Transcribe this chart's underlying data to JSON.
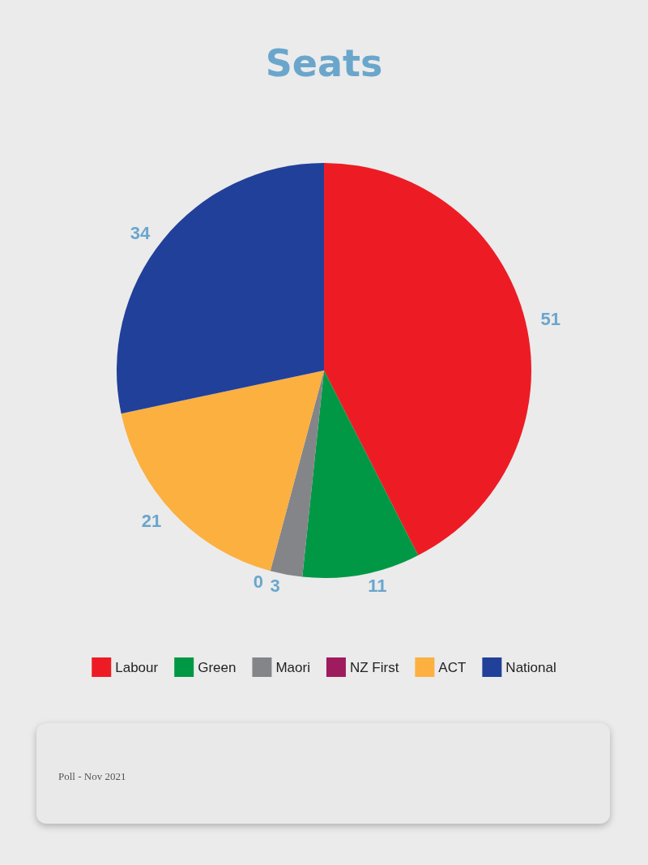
{
  "chart_data": {
    "type": "pie",
    "title": "Seats",
    "categories": [
      "Labour",
      "Green",
      "Maori",
      "NZ First",
      "ACT",
      "National"
    ],
    "values": [
      51,
      11,
      3,
      0,
      21,
      34
    ],
    "colors": [
      "#ed1c24",
      "#009845",
      "#848589",
      "#9e1b5e",
      "#fbb040",
      "#21409a"
    ],
    "value_labels": [
      "51",
      "11",
      "3",
      "0",
      "21",
      "34"
    ],
    "legend": "bottom",
    "annotations": [
      "Poll - Nov 2021"
    ]
  }
}
